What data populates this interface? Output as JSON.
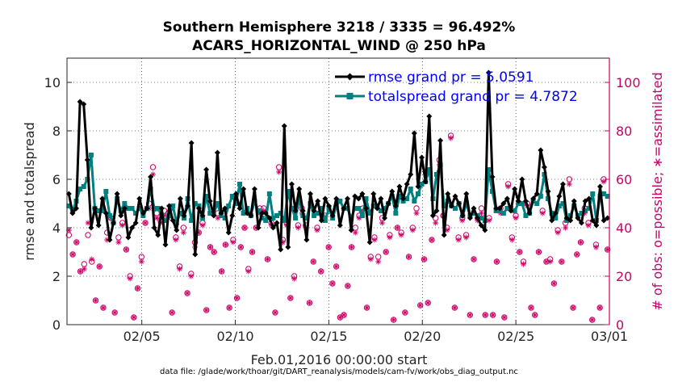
{
  "chart_data": {
    "type": "line",
    "title_line1": "Southern Hemisphere 3218 / 3335 = 96.492%",
    "title_line2": "ACARS_HORIZONTAL_WIND @ 250 hPa",
    "xlabel": "Feb.01,2016 00:00:00 start",
    "ylabel_left": "rmse and totalspread",
    "ylabel_right": "# of obs: o=possible; ∗=assimilated",
    "footer": "data file: /glade/work/thoar/git/DART_reanalysis/models/cam-fv/work/obs_diag_output.nc",
    "x_ticks": [
      {
        "v": 5,
        "label": "02/05"
      },
      {
        "v": 10,
        "label": "02/10"
      },
      {
        "v": 15,
        "label": "02/15"
      },
      {
        "v": 20,
        "label": "02/20"
      },
      {
        "v": 25,
        "label": "02/25"
      },
      {
        "v": 30,
        "label": "03/01"
      }
    ],
    "xlim": [
      1,
      30
    ],
    "ylim_left": [
      0,
      11
    ],
    "y_ticks_left": [
      0,
      2,
      4,
      6,
      8,
      10
    ],
    "ylim_right": [
      0,
      110
    ],
    "y_ticks_right": [
      0,
      20,
      40,
      60,
      80,
      100
    ],
    "colors": {
      "rmse": "#000000",
      "spread": "#008080",
      "obs": "#cc0066",
      "legend_text": "#0000ff",
      "right_axis": "#cc0066"
    },
    "legend_placement": "top-right",
    "series": [
      {
        "name": "rmse grand pr = 5.0591",
        "key": "rmse",
        "marker": "diamond",
        "values": [
          5.4,
          4.6,
          4.8,
          9.2,
          9.1,
          6.8,
          4.0,
          4.8,
          4.1,
          5.2,
          4.6,
          3.5,
          4.2,
          5.4,
          4.5,
          4.8,
          3.6,
          4.0,
          4.2,
          5.2,
          4.6,
          4.8,
          6.1,
          4.0,
          3.7,
          4.8,
          3.3,
          4.9,
          4.3,
          3.9,
          5.2,
          4.5,
          4.9,
          7.5,
          2.9,
          4.8,
          4.5,
          6.4,
          5.1,
          4.5,
          7.1,
          4.6,
          4.8,
          3.8,
          4.5,
          5.4,
          4.8,
          5.6,
          4.6,
          4.5,
          5.6,
          4.0,
          4.6,
          4.6,
          4.4,
          4.0,
          4.2,
          3.1,
          8.2,
          3.2,
          5.8,
          4.7,
          5.6,
          4.7,
          3.5,
          5.4,
          4.7,
          5.1,
          4.3,
          5.2,
          4.9,
          4.5,
          5.2,
          4.1,
          4.8,
          5.2,
          3.9,
          5.3,
          5.2,
          5.4,
          4.8,
          3.4,
          5.4,
          4.8,
          5.2,
          4.4,
          5.0,
          5.5,
          4.9,
          5.7,
          5.2,
          5.8,
          6.2,
          7.9,
          5.7,
          6.9,
          5.9,
          8.6,
          4.5,
          4.7,
          7.6,
          3.7,
          5.4,
          4.9,
          5.3,
          5.0,
          4.5,
          5.4,
          4.4,
          4.8,
          4.4,
          4.1,
          3.9,
          10.4,
          6.1,
          4.8,
          4.8,
          5.0,
          5.2,
          4.7,
          5.6,
          5.1,
          6.0,
          5.1,
          4.6,
          5.2,
          5.4,
          7.2,
          6.5,
          5.5,
          4.3,
          4.6,
          5.3,
          5.8,
          4.4,
          4.3,
          5.1,
          4.4,
          4.2,
          5.1,
          5.2,
          4.3,
          4.1,
          5.7,
          4.3,
          4.4
        ]
      },
      {
        "name": "totalspread grand pr = 4.7872",
        "key": "spread",
        "marker": "square",
        "values": [
          4.9,
          4.7,
          5.1,
          5.6,
          5.7,
          6.0,
          7.0,
          4.8,
          4.7,
          4.7,
          5.5,
          4.5,
          4.2,
          5.2,
          4.7,
          5.0,
          4.8,
          4.8,
          4.6,
          4.8,
          4.5,
          4.8,
          5.6,
          4.8,
          4.8,
          4.5,
          4.3,
          4.5,
          4.9,
          4.2,
          4.6,
          4.4,
          5.2,
          4.3,
          5.0,
          4.9,
          4.4,
          5.3,
          4.6,
          4.6,
          5.0,
          4.5,
          4.4,
          4.9,
          5.3,
          5.0,
          5.8,
          4.6,
          4.8,
          4.5,
          5.1,
          4.7,
          4.4,
          4.3,
          5.4,
          4.4,
          4.5,
          4.6,
          4.3,
          5.5,
          4.8,
          4.4,
          5.2,
          4.5,
          4.4,
          5.0,
          4.5,
          4.6,
          4.8,
          4.3,
          4.8,
          4.4,
          4.9,
          5.1,
          4.8,
          4.8,
          4.4,
          4.8,
          4.8,
          4.5,
          5.2,
          4.6,
          4.9,
          4.9,
          4.7,
          4.8,
          5.0,
          5.3,
          4.6,
          5.3,
          5.1,
          5.2,
          5.6,
          5.1,
          5.4,
          5.8,
          5.9,
          6.4,
          5.2,
          6.2,
          6.6,
          4.9,
          5.1,
          4.9,
          4.8,
          5.0,
          4.5,
          5.0,
          4.5,
          4.6,
          4.5,
          4.4,
          4.3,
          6.4,
          5.5,
          4.7,
          4.7,
          4.6,
          4.8,
          4.8,
          4.7,
          5.0,
          5.0,
          4.5,
          4.6,
          5.1,
          5.0,
          5.3,
          6.2,
          5.2,
          4.6,
          4.4,
          4.9,
          5.0,
          4.3,
          4.5,
          4.9,
          4.5,
          4.6,
          4.7,
          4.8,
          5.4,
          4.3,
          5.3,
          5.4,
          5.3
        ]
      },
      {
        "name": "obs possible",
        "key": "possible",
        "marker": "circle",
        "values": [
          37,
          29,
          34,
          22,
          25,
          37,
          26,
          10,
          24,
          7,
          38,
          44,
          5,
          36,
          42,
          31,
          20,
          3,
          15,
          28,
          42,
          50,
          65,
          46,
          43,
          47,
          46,
          5,
          36,
          24,
          40,
          13,
          21,
          34,
          38,
          42,
          6,
          32,
          30,
          46,
          22,
          33,
          7,
          35,
          11,
          32,
          40,
          23,
          30,
          40,
          48,
          48,
          27,
          42,
          5,
          65,
          35,
          42,
          11,
          20,
          41,
          48,
          41,
          9,
          26,
          40,
          22,
          45,
          32,
          17,
          24,
          3,
          4,
          16,
          32,
          40,
          45,
          48,
          7,
          28,
          36,
          28,
          44,
          30,
          37,
          2,
          40,
          38,
          5,
          28,
          40,
          48,
          8,
          27,
          9,
          35,
          44,
          68,
          45,
          40,
          78,
          7,
          36,
          44,
          37,
          4,
          27,
          44,
          48,
          4,
          44,
          4,
          26,
          48,
          3,
          58,
          36,
          45,
          30,
          26,
          50,
          7,
          4,
          30,
          47,
          26,
          27,
          17,
          39,
          26,
          42,
          60,
          7,
          29,
          34,
          48,
          42,
          2,
          33,
          7,
          60,
          31
        ]
      },
      {
        "name": "obs assimilated",
        "key": "assimilated",
        "marker": "star",
        "values": [
          39,
          29,
          34,
          22,
          23,
          42,
          27,
          10,
          24,
          7,
          35,
          44,
          5,
          34,
          41,
          31,
          19,
          3,
          15,
          26,
          42,
          48,
          62,
          44,
          42,
          45,
          44,
          5,
          35,
          23,
          38,
          13,
          20,
          32,
          38,
          41,
          6,
          32,
          30,
          44,
          22,
          33,
          7,
          34,
          11,
          32,
          40,
          22,
          30,
          40,
          46,
          47,
          27,
          41,
          5,
          63,
          34,
          41,
          11,
          19,
          40,
          46,
          40,
          9,
          26,
          39,
          22,
          44,
          32,
          17,
          24,
          3,
          4,
          16,
          32,
          38,
          44,
          47,
          7,
          27,
          35,
          26,
          42,
          30,
          36,
          2,
          40,
          37,
          5,
          28,
          39,
          46,
          8,
          27,
          9,
          35,
          42,
          66,
          45,
          39,
          77,
          7,
          35,
          43,
          36,
          4,
          27,
          43,
          46,
          4,
          43,
          4,
          26,
          46,
          3,
          57,
          35,
          44,
          30,
          25,
          49,
          7,
          4,
          30,
          46,
          26,
          26,
          17,
          38,
          26,
          40,
          58,
          7,
          29,
          34,
          46,
          41,
          2,
          32,
          7,
          59,
          31
        ]
      }
    ]
  }
}
